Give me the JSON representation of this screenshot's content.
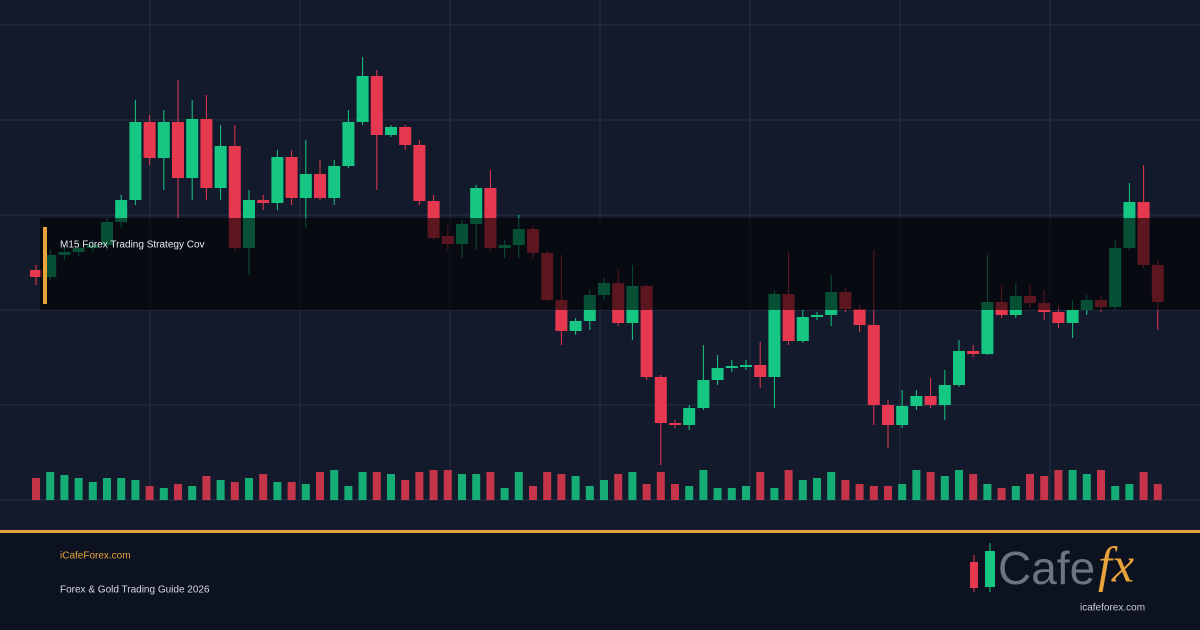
{
  "chart_data": {
    "type": "candlestick",
    "title": "M15 Forex Trading Strategy Cov",
    "ylim": [
      0,
      500
    ],
    "volume_lim": [
      0,
      30
    ],
    "up_color": "#16c784",
    "down_color": "#e63950",
    "grid": true,
    "open": [
      230,
      223,
      245,
      248,
      252,
      255,
      278,
      300,
      378,
      342,
      378,
      322,
      381,
      312,
      354,
      252,
      300,
      297,
      343,
      302,
      326,
      302,
      334,
      378,
      424,
      365,
      373,
      355,
      299,
      264,
      256,
      276,
      312,
      252,
      255,
      271,
      247,
      200,
      169,
      179,
      205,
      217,
      177,
      214,
      123,
      77,
      75,
      92,
      120,
      132,
      134,
      135,
      123,
      206,
      159,
      183,
      185,
      208,
      191,
      175,
      95,
      75,
      94,
      104,
      95,
      115,
      149,
      146,
      198,
      185,
      204,
      197,
      188,
      177,
      190,
      200,
      193,
      252,
      298,
      235
    ],
    "high": [
      235,
      250,
      255,
      258,
      260,
      282,
      305,
      400,
      385,
      390,
      420,
      400,
      405,
      375,
      375,
      310,
      305,
      350,
      350,
      360,
      340,
      340,
      390,
      443,
      430,
      375,
      375,
      360,
      305,
      275,
      280,
      315,
      330,
      260,
      285,
      275,
      250,
      245,
      182,
      210,
      222,
      230,
      235,
      215,
      125,
      80,
      95,
      155,
      145,
      140,
      140,
      158,
      210,
      248,
      190,
      188,
      225,
      212,
      195,
      250,
      100,
      110,
      110,
      122,
      130,
      160,
      155,
      245,
      215,
      217,
      215,
      210,
      195,
      200,
      205,
      205,
      260,
      317,
      335,
      240
    ],
    "low": [
      215,
      220,
      240,
      244,
      248,
      250,
      272,
      295,
      335,
      310,
      282,
      300,
      300,
      300,
      250,
      225,
      290,
      290,
      295,
      272,
      300,
      295,
      332,
      375,
      310,
      363,
      350,
      295,
      260,
      250,
      242,
      250,
      250,
      242,
      242,
      242,
      198,
      155,
      165,
      170,
      200,
      174,
      160,
      120,
      35,
      72,
      70,
      90,
      115,
      128,
      130,
      112,
      92,
      155,
      157,
      180,
      174,
      188,
      168,
      75,
      52,
      72,
      90,
      92,
      80,
      113,
      143,
      145,
      182,
      182,
      192,
      180,
      172,
      162,
      185,
      188,
      190,
      250,
      232,
      170
    ],
    "close": [
      223,
      245,
      248,
      252,
      255,
      278,
      300,
      378,
      342,
      378,
      322,
      381,
      312,
      354,
      252,
      300,
      297,
      343,
      302,
      326,
      302,
      334,
      378,
      424,
      365,
      373,
      355,
      299,
      262,
      256,
      276,
      312,
      252,
      255,
      271,
      247,
      200,
      169,
      179,
      205,
      217,
      177,
      214,
      123,
      77,
      75,
      92,
      120,
      132,
      134,
      135,
      123,
      206,
      159,
      183,
      185,
      208,
      191,
      175,
      95,
      75,
      94,
      104,
      95,
      115,
      149,
      146,
      198,
      185,
      204,
      197,
      188,
      177,
      190,
      200,
      193,
      252,
      298,
      235,
      198
    ],
    "volume": [
      22,
      28,
      25,
      22,
      18,
      22,
      22,
      20,
      14,
      12,
      16,
      14,
      24,
      20,
      18,
      22,
      26,
      18,
      18,
      16,
      28,
      30,
      14,
      28,
      28,
      26,
      20,
      28,
      30,
      30,
      26,
      26,
      28,
      12,
      28,
      14,
      28,
      26,
      24,
      14,
      20,
      26,
      28,
      16,
      28,
      16,
      14,
      30,
      12,
      12,
      14,
      28,
      12,
      30,
      20,
      22,
      28,
      20,
      16,
      14,
      14,
      16,
      30,
      28,
      24,
      30,
      26,
      16,
      12,
      14,
      26,
      24,
      30,
      30,
      26,
      30,
      14,
      16,
      28,
      16
    ]
  },
  "footer": {
    "site": "iCafeForex.com",
    "subtitle": "Forex & Gold Trading Guide 2026"
  },
  "logo": {
    "text": "Cafe",
    "accent": "fx",
    "url": "icafeforex.com"
  }
}
